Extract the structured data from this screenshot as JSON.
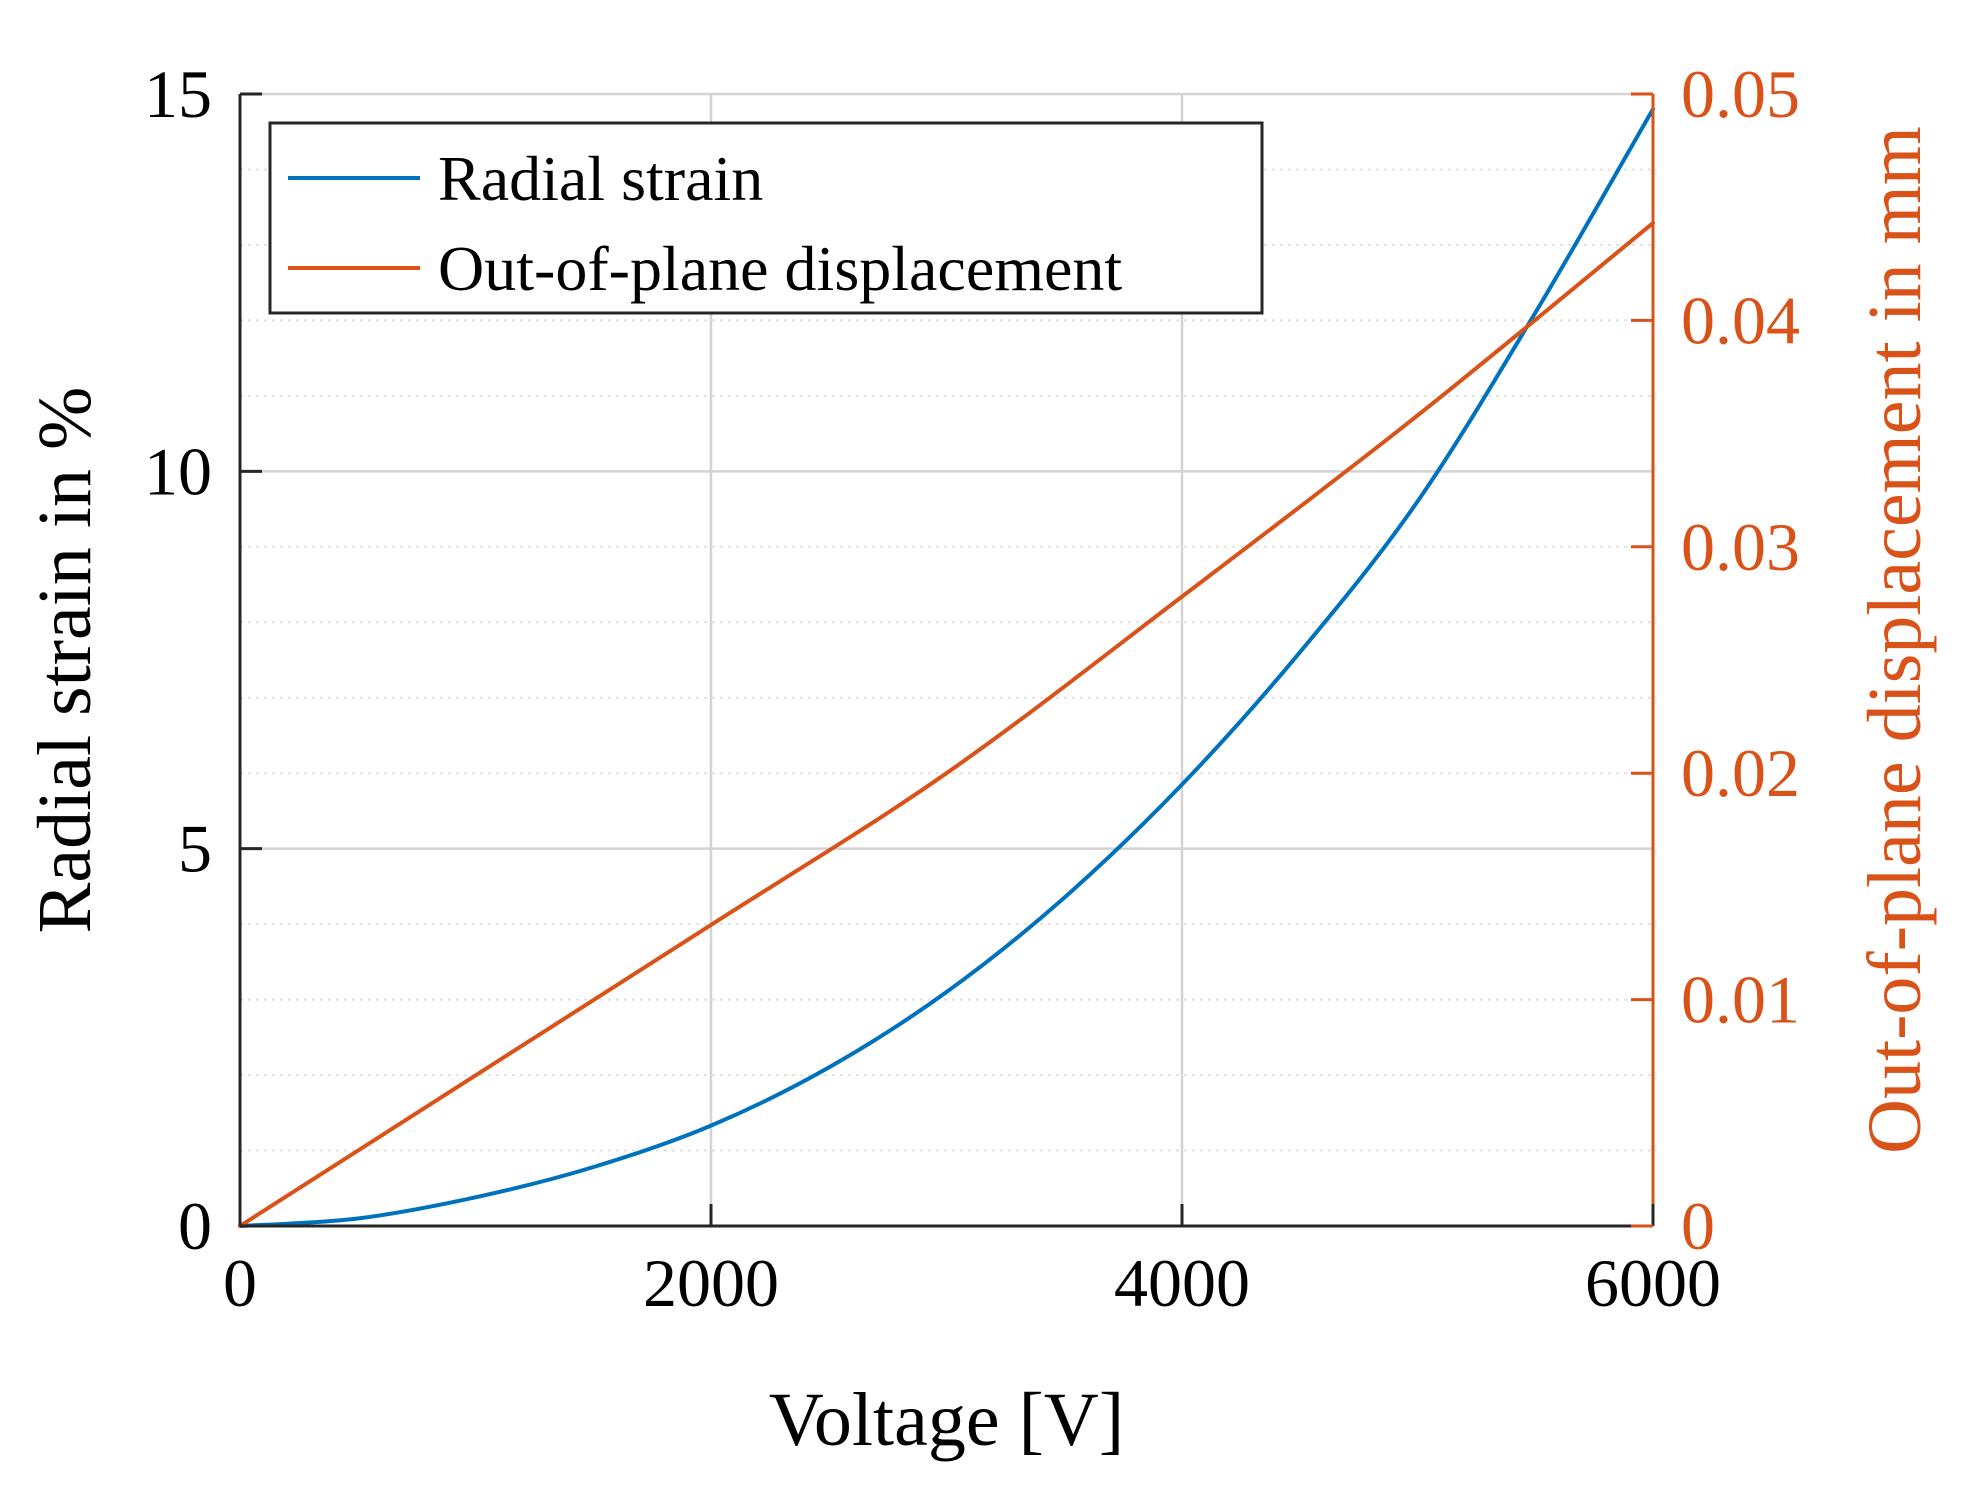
{
  "chart_data": {
    "type": "line",
    "title": "",
    "xlabel": "Voltage [V]",
    "ylabel": "Radial strain in %",
    "ylabel_right": "Out-of-plane displacement in mm",
    "xlim": [
      0,
      6000
    ],
    "ylim": [
      0,
      15
    ],
    "ylim_right": [
      0,
      0.05
    ],
    "x_ticks": [
      0,
      2000,
      4000,
      6000
    ],
    "x_tick_labels": [
      "0",
      "2000",
      "4000",
      "6000"
    ],
    "y_ticks": [
      0,
      5,
      10,
      15
    ],
    "y_tick_labels": [
      "0",
      "5",
      "10",
      "15"
    ],
    "y_ticks_right": [
      0,
      0.01,
      0.02,
      0.03,
      0.04,
      0.05
    ],
    "y_tick_labels_right": [
      "0",
      "0.01",
      "0.02",
      "0.03",
      "0.04",
      "0.05"
    ],
    "grid": true,
    "minor_grid_y": true,
    "legend_position": "top-left",
    "series": [
      {
        "name": "Radial strain",
        "axis": "left",
        "color": "#0072BD",
        "x": [
          0,
          500,
          1000,
          1500,
          2000,
          2500,
          3000,
          3500,
          4000,
          4500,
          5000,
          5500,
          6000
        ],
        "values": [
          0,
          0.1,
          0.38,
          0.78,
          1.33,
          2.1,
          3.1,
          4.35,
          5.85,
          7.6,
          9.6,
          12.1,
          14.8
        ]
      },
      {
        "name": "Out-of-plane displacement",
        "axis": "right",
        "color": "#D95319",
        "x": [
          0,
          1000,
          2000,
          3000,
          4000,
          5000,
          6000
        ],
        "values": [
          0,
          0.00665,
          0.0133,
          0.02,
          0.0278,
          0.0358,
          0.0443
        ]
      }
    ]
  }
}
